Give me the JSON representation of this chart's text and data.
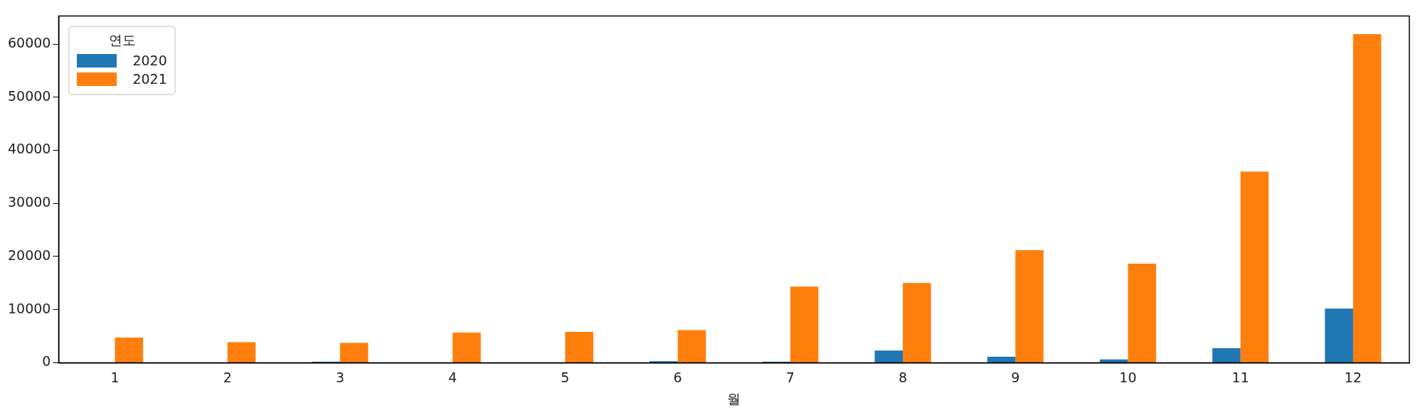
{
  "chart_data": {
    "type": "bar",
    "xlabel": "월",
    "legend_title": "연도",
    "legend": "top left",
    "grid": false,
    "categories": [
      "1",
      "2",
      "3",
      "4",
      "5",
      "6",
      "7",
      "8",
      "9",
      "10",
      "11",
      "12"
    ],
    "series": [
      {
        "name": "2020",
        "color": "#1f77b4",
        "values": [
          0,
          0,
          200,
          0,
          0,
          300,
          200,
          2280,
          1140,
          630,
          2720,
          10180
        ]
      },
      {
        "name": "2021",
        "color": "#ff7f0e",
        "values": [
          4740,
          3860,
          3730,
          5690,
          5820,
          6130,
          14350,
          15000,
          21180,
          18650,
          35970,
          61890
        ]
      }
    ],
    "ylim": [
      0,
      65300
    ],
    "yticks": [
      0,
      10000,
      20000,
      30000,
      40000,
      50000,
      60000
    ]
  }
}
